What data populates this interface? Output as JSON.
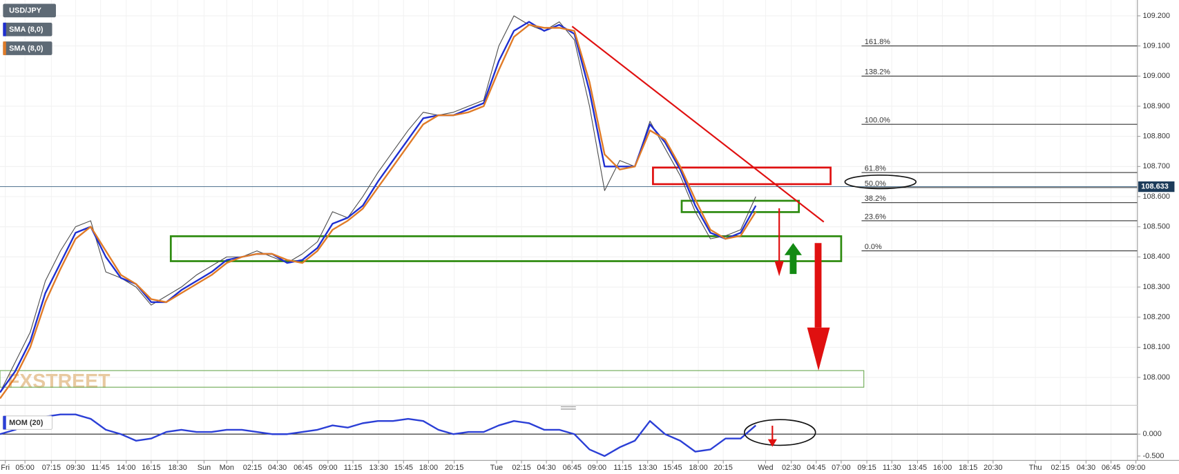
{
  "chart_data": [
    {
      "type": "line",
      "x": [
        0,
        2,
        4,
        6,
        8,
        10,
        12,
        14,
        16,
        18,
        20,
        22,
        24,
        26,
        28,
        30,
        32,
        34,
        36,
        38,
        40,
        42,
        44,
        46,
        48,
        50,
        52,
        54,
        56,
        58,
        60,
        62,
        64,
        66,
        68,
        70,
        72,
        74,
        76,
        78,
        80,
        82,
        84,
        86,
        88,
        90,
        92,
        94,
        96,
        98,
        100
      ],
      "series": [
        {
          "name": "USD/JPY",
          "color": "#4a4a4a",
          "values": [
            107.95,
            108.05,
            108.15,
            108.32,
            108.42,
            108.5,
            108.52,
            108.35,
            108.33,
            108.3,
            108.24,
            108.27,
            108.3,
            108.34,
            108.37,
            108.4,
            108.4,
            108.42,
            108.4,
            108.38,
            108.41,
            108.45,
            108.55,
            108.53,
            108.6,
            108.68,
            108.75,
            108.82,
            108.88,
            108.87,
            108.88,
            108.9,
            108.92,
            109.1,
            109.2,
            109.17,
            109.15,
            109.18,
            109.12,
            108.9,
            108.62,
            108.72,
            108.7,
            108.85,
            108.76,
            108.67,
            108.55,
            108.46,
            108.47,
            108.49,
            108.6
          ]
        },
        {
          "name": "SMA (8,0)",
          "color": "#1f2fd0",
          "values": [
            107.95,
            108.02,
            108.12,
            108.28,
            108.38,
            108.48,
            108.5,
            108.4,
            108.33,
            108.31,
            108.25,
            108.25,
            108.29,
            108.32,
            108.35,
            108.39,
            108.4,
            108.41,
            108.41,
            108.38,
            108.39,
            108.43,
            108.51,
            108.53,
            108.57,
            108.65,
            108.72,
            108.79,
            108.86,
            108.87,
            108.87,
            108.89,
            108.91,
            109.05,
            109.15,
            109.18,
            109.15,
            109.17,
            109.14,
            108.95,
            108.7,
            108.7,
            108.7,
            108.84,
            108.78,
            108.69,
            108.57,
            108.48,
            108.46,
            108.48,
            108.57
          ]
        },
        {
          "name": "SMA (8,0)",
          "color": "#e07b27",
          "values": [
            107.93,
            108.0,
            108.1,
            108.25,
            108.36,
            108.46,
            108.5,
            108.42,
            108.34,
            108.31,
            108.26,
            108.25,
            108.28,
            108.31,
            108.34,
            108.38,
            108.4,
            108.41,
            108.41,
            108.39,
            108.38,
            108.42,
            108.49,
            108.52,
            108.56,
            108.63,
            108.7,
            108.77,
            108.84,
            108.87,
            108.87,
            108.88,
            108.9,
            109.02,
            109.13,
            109.17,
            109.16,
            109.16,
            109.15,
            108.98,
            108.74,
            108.69,
            108.7,
            108.82,
            108.79,
            108.7,
            108.59,
            108.49,
            108.46,
            108.47,
            108.55
          ]
        }
      ],
      "xlim": [
        0,
        150
      ],
      "ylim": [
        107.91,
        109.25
      ],
      "yticks": [
        {
          "value": 108.0,
          "label": "108.000"
        },
        {
          "value": 108.1,
          "label": "108.100"
        },
        {
          "value": 108.2,
          "label": "108.200"
        },
        {
          "value": 108.3,
          "label": "108.300"
        },
        {
          "value": 108.4,
          "label": "108.400"
        },
        {
          "value": 108.5,
          "label": "108.500"
        },
        {
          "value": 108.6,
          "label": "108.600"
        },
        {
          "value": 108.7,
          "label": "108.700"
        },
        {
          "value": 108.8,
          "label": "108.800"
        },
        {
          "value": 108.9,
          "label": "108.900"
        },
        {
          "value": 109.0,
          "label": "109.000"
        },
        {
          "value": 109.1,
          "label": "109.100"
        },
        {
          "value": 109.2,
          "label": "109.200"
        }
      ],
      "xticks": [
        {
          "value": 0.7,
          "label": "Fri"
        },
        {
          "value": 3.3,
          "label": "05:00"
        },
        {
          "value": 6.8,
          "label": "07:15"
        },
        {
          "value": 10.0,
          "label": "09:30"
        },
        {
          "value": 13.3,
          "label": "11:45"
        },
        {
          "value": 16.7,
          "label": "14:00"
        },
        {
          "value": 20.0,
          "label": "16:15"
        },
        {
          "value": 23.5,
          "label": "18:30"
        },
        {
          "value": 27.0,
          "label": "Sun"
        },
        {
          "value": 30.0,
          "label": "Mon"
        },
        {
          "value": 33.4,
          "label": "02:15"
        },
        {
          "value": 36.7,
          "label": "04:30"
        },
        {
          "value": 40.1,
          "label": "06:45"
        },
        {
          "value": 43.4,
          "label": "09:00"
        },
        {
          "value": 46.7,
          "label": "11:15"
        },
        {
          "value": 50.1,
          "label": "13:30"
        },
        {
          "value": 53.4,
          "label": "15:45"
        },
        {
          "value": 56.7,
          "label": "18:00"
        },
        {
          "value": 60.1,
          "label": "20:15"
        },
        {
          "value": 65.7,
          "label": "Tue"
        },
        {
          "value": 69.0,
          "label": "02:15"
        },
        {
          "value": 72.3,
          "label": "04:30"
        },
        {
          "value": 75.7,
          "label": "06:45"
        },
        {
          "value": 79.0,
          "label": "09:00"
        },
        {
          "value": 82.4,
          "label": "11:15"
        },
        {
          "value": 85.7,
          "label": "13:30"
        },
        {
          "value": 89.0,
          "label": "15:45"
        },
        {
          "value": 92.4,
          "label": "18:00"
        },
        {
          "value": 95.7,
          "label": "20:15"
        },
        {
          "value": 101.3,
          "label": "Wed"
        },
        {
          "value": 104.7,
          "label": "02:30"
        },
        {
          "value": 108.0,
          "label": "04:45"
        },
        {
          "value": 111.3,
          "label": "07:00"
        },
        {
          "value": 114.7,
          "label": "09:15"
        },
        {
          "value": 118.0,
          "label": "11:30"
        },
        {
          "value": 121.4,
          "label": "13:45"
        },
        {
          "value": 124.7,
          "label": "16:00"
        },
        {
          "value": 128.1,
          "label": "18:15"
        },
        {
          "value": 131.4,
          "label": "20:30"
        },
        {
          "value": 137.0,
          "label": "Thu"
        },
        {
          "value": 140.3,
          "label": "02:15"
        },
        {
          "value": 143.7,
          "label": "04:30"
        },
        {
          "value": 147.0,
          "label": "06:45"
        },
        {
          "value": 150.3,
          "label": "09:00"
        }
      ],
      "last_price": 108.633,
      "fib_levels": [
        {
          "value": 109.1,
          "label": "161.8%"
        },
        {
          "value": 109.0,
          "label": "138.2%"
        },
        {
          "value": 108.84,
          "label": "100.0%"
        },
        {
          "value": 108.68,
          "label": "61.8%"
        },
        {
          "value": 108.63,
          "label": "50.0%"
        },
        {
          "value": 108.58,
          "label": "38.2%"
        },
        {
          "value": 108.52,
          "label": "23.6%"
        },
        {
          "value": 108.42,
          "label": "0.0%"
        }
      ],
      "watermark": "FXSTREET",
      "grid": true
    },
    {
      "type": "line",
      "x": [
        0,
        2,
        4,
        6,
        8,
        10,
        12,
        14,
        16,
        18,
        20,
        22,
        24,
        26,
        28,
        30,
        32,
        34,
        36,
        38,
        40,
        42,
        44,
        46,
        48,
        50,
        52,
        54,
        56,
        58,
        60,
        62,
        64,
        66,
        68,
        70,
        72,
        74,
        76,
        78,
        80,
        82,
        84,
        86,
        88,
        90,
        92,
        94,
        96,
        98,
        100
      ],
      "series": [
        {
          "name": "MOM (20)",
          "color": "#2b3fd6",
          "values": [
            0.0,
            0.1,
            0.25,
            0.4,
            0.45,
            0.45,
            0.35,
            0.1,
            0.0,
            -0.15,
            -0.1,
            0.05,
            0.1,
            0.05,
            0.05,
            0.1,
            0.1,
            0.05,
            0.0,
            0.0,
            0.05,
            0.1,
            0.2,
            0.15,
            0.25,
            0.3,
            0.3,
            0.35,
            0.3,
            0.1,
            0.0,
            0.05,
            0.05,
            0.2,
            0.3,
            0.25,
            0.1,
            0.1,
            0.0,
            -0.35,
            -0.5,
            -0.3,
            -0.15,
            0.3,
            0.0,
            -0.15,
            -0.4,
            -0.35,
            -0.1,
            -0.1,
            0.2
          ]
        }
      ],
      "xlim": [
        0,
        150
      ],
      "ylim": [
        -0.6,
        0.52
      ],
      "yticks": [
        {
          "value": 0,
          "label": "0.000"
        },
        {
          "value": -0.5,
          "label": "-0.500"
        }
      ]
    }
  ]
}
